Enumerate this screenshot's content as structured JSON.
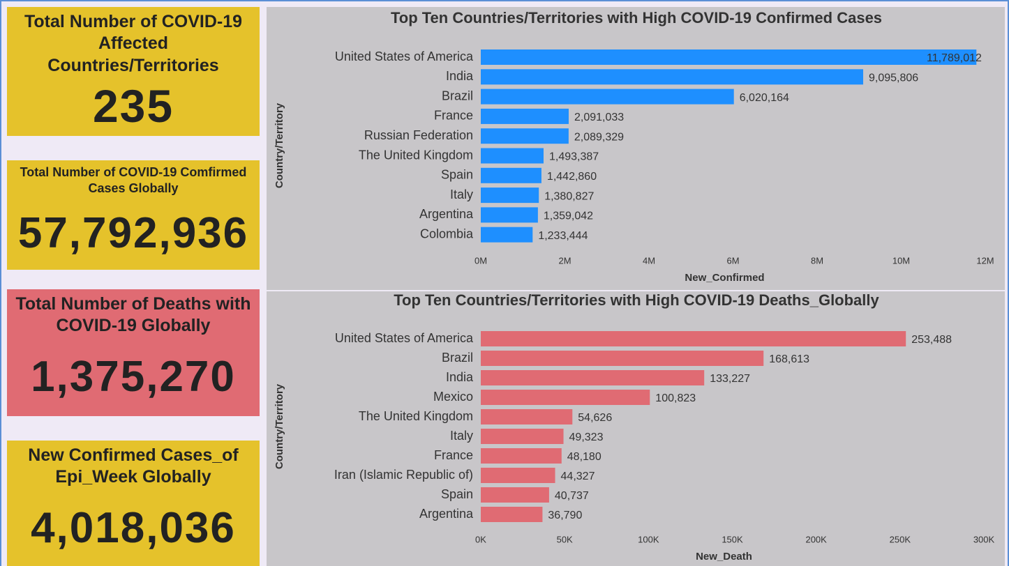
{
  "cards": [
    {
      "title": "Total Number of COVID-19 Affected Countries/Territories",
      "value": "235"
    },
    {
      "title": "Total Number of COVID-19 Comfirmed Cases Globally",
      "value": "57,792,936"
    },
    {
      "title": "Total Number of Deaths with COVID-19 Globally",
      "value": "1,375,270"
    },
    {
      "title": "New Confirmed Cases_of Epi_Week Globally",
      "value": "4,018,036"
    }
  ],
  "chart_data": [
    {
      "type": "hbar",
      "title": "Top Ten Countries/Territories with High COVID-19 Confirmed Cases",
      "x_label": "New_Confirmed",
      "y_label": "Country/Territory",
      "color": "#1e8fff",
      "categories": [
        "United States of America",
        "India",
        "Brazil",
        "France",
        "Russian Federation",
        "The United Kingdom",
        "Spain",
        "Italy",
        "Argentina",
        "Colombia"
      ],
      "values": [
        11789012,
        9095806,
        6020164,
        2091033,
        2089329,
        1493387,
        1442860,
        1380827,
        1359042,
        1233444
      ],
      "value_labels": [
        "11,789,012",
        "9,095,806",
        "6,020,164",
        "2,091,033",
        "2,089,329",
        "1,493,387",
        "1,442,860",
        "1,380,827",
        "1,359,042",
        "1,233,444"
      ],
      "xlim": [
        0,
        12000000
      ],
      "xticks": [
        {
          "value": 0,
          "label": "0M"
        },
        {
          "value": 2000000,
          "label": "2M"
        },
        {
          "value": 4000000,
          "label": "4M"
        },
        {
          "value": 6000000,
          "label": "6M"
        },
        {
          "value": 8000000,
          "label": "8M"
        },
        {
          "value": 10000000,
          "label": "10M"
        },
        {
          "value": 12000000,
          "label": "12M"
        }
      ]
    },
    {
      "type": "hbar",
      "title": "Top Ten Countries/Territories with High COVID-19 Deaths_Globally",
      "x_label": "New_Death",
      "y_label": "Country/Territory",
      "color": "#e06b73",
      "categories": [
        "United States of America",
        "Brazil",
        "India",
        "Mexico",
        "The United Kingdom",
        "Italy",
        "France",
        "Iran (Islamic Republic of)",
        "Spain",
        "Argentina"
      ],
      "values": [
        253488,
        168613,
        133227,
        100823,
        54626,
        49323,
        48180,
        44327,
        40737,
        36790
      ],
      "value_labels": [
        "253,488",
        "168,613",
        "133,227",
        "100,823",
        "54,626",
        "49,323",
        "48,180",
        "44,327",
        "40,737",
        "36,790"
      ],
      "xlim": [
        0,
        300000
      ],
      "xticks": [
        {
          "value": 0,
          "label": "0K"
        },
        {
          "value": 50000,
          "label": "50K"
        },
        {
          "value": 100000,
          "label": "100K"
        },
        {
          "value": 150000,
          "label": "150K"
        },
        {
          "value": 200000,
          "label": "200K"
        },
        {
          "value": 250000,
          "label": "250K"
        },
        {
          "value": 300000,
          "label": "300K"
        }
      ]
    }
  ]
}
